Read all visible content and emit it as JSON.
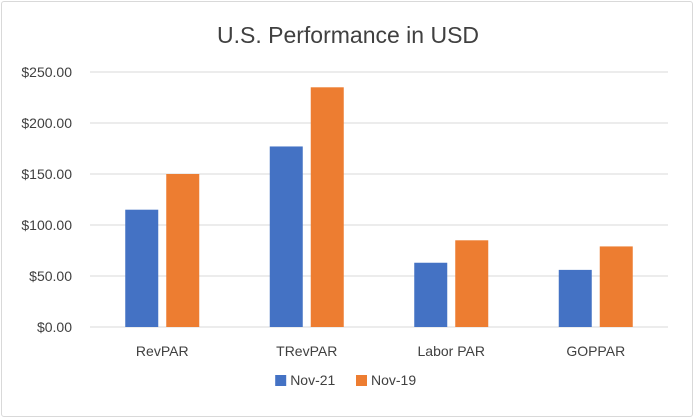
{
  "chart_data": {
    "type": "bar",
    "title": "U.S. Performance in USD",
    "xlabel": "",
    "ylabel": "",
    "categories": [
      "RevPAR",
      "TRevPAR",
      "Labor PAR",
      "GOPPAR"
    ],
    "series": [
      {
        "name": "Nov-21",
        "color": "#4472C4",
        "values": [
          115,
          177,
          63,
          56
        ]
      },
      {
        "name": "Nov-19",
        "color": "#ED7D31",
        "values": [
          150,
          235,
          85,
          79
        ]
      }
    ],
    "ylim": [
      0,
      250
    ],
    "yticks": [
      0,
      50,
      100,
      150,
      200,
      250
    ],
    "ytick_labels": [
      "$0.00",
      "$50.00",
      "$100.00",
      "$150.00",
      "$200.00",
      "$250.00"
    ],
    "grid": true,
    "gridline_color": "#d9d9d9",
    "legend_position": "bottom"
  }
}
